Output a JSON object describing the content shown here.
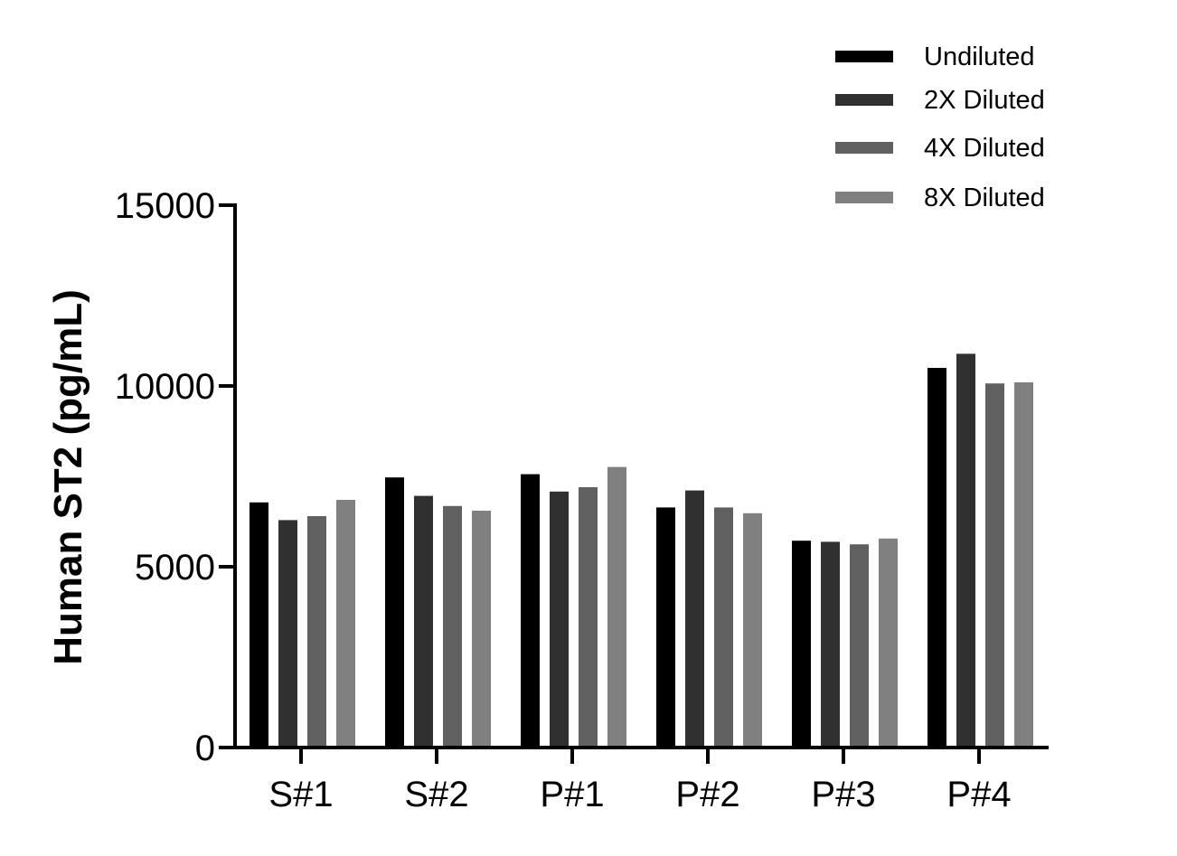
{
  "chart_data": {
    "type": "bar",
    "title": "",
    "xlabel": "",
    "ylabel": "Human ST2 (pg/mL)",
    "ylim": [
      0,
      15000
    ],
    "yticks": [
      0,
      5000,
      10000,
      15000
    ],
    "ytick_labels": [
      "0",
      "5000",
      "10000",
      "15000"
    ],
    "grid": false,
    "legend_position": "top-right",
    "categories": [
      "S#1",
      "S#2",
      "P#1",
      "P#2",
      "P#3",
      "P#4"
    ],
    "series": [
      {
        "name": "Undiluted",
        "color": "#000000",
        "values": [
          6780,
          7470,
          7560,
          6640,
          5720,
          10500
        ]
      },
      {
        "name": "2X Diluted",
        "color": "#303030",
        "values": [
          6290,
          6960,
          7080,
          7110,
          5690,
          10890
        ]
      },
      {
        "name": "4X Diluted",
        "color": "#606060",
        "values": [
          6400,
          6680,
          7200,
          6640,
          5620,
          10070
        ]
      },
      {
        "name": "8X Diluted",
        "color": "#808080",
        "values": [
          6850,
          6550,
          7760,
          6480,
          5780,
          10100
        ]
      }
    ]
  }
}
